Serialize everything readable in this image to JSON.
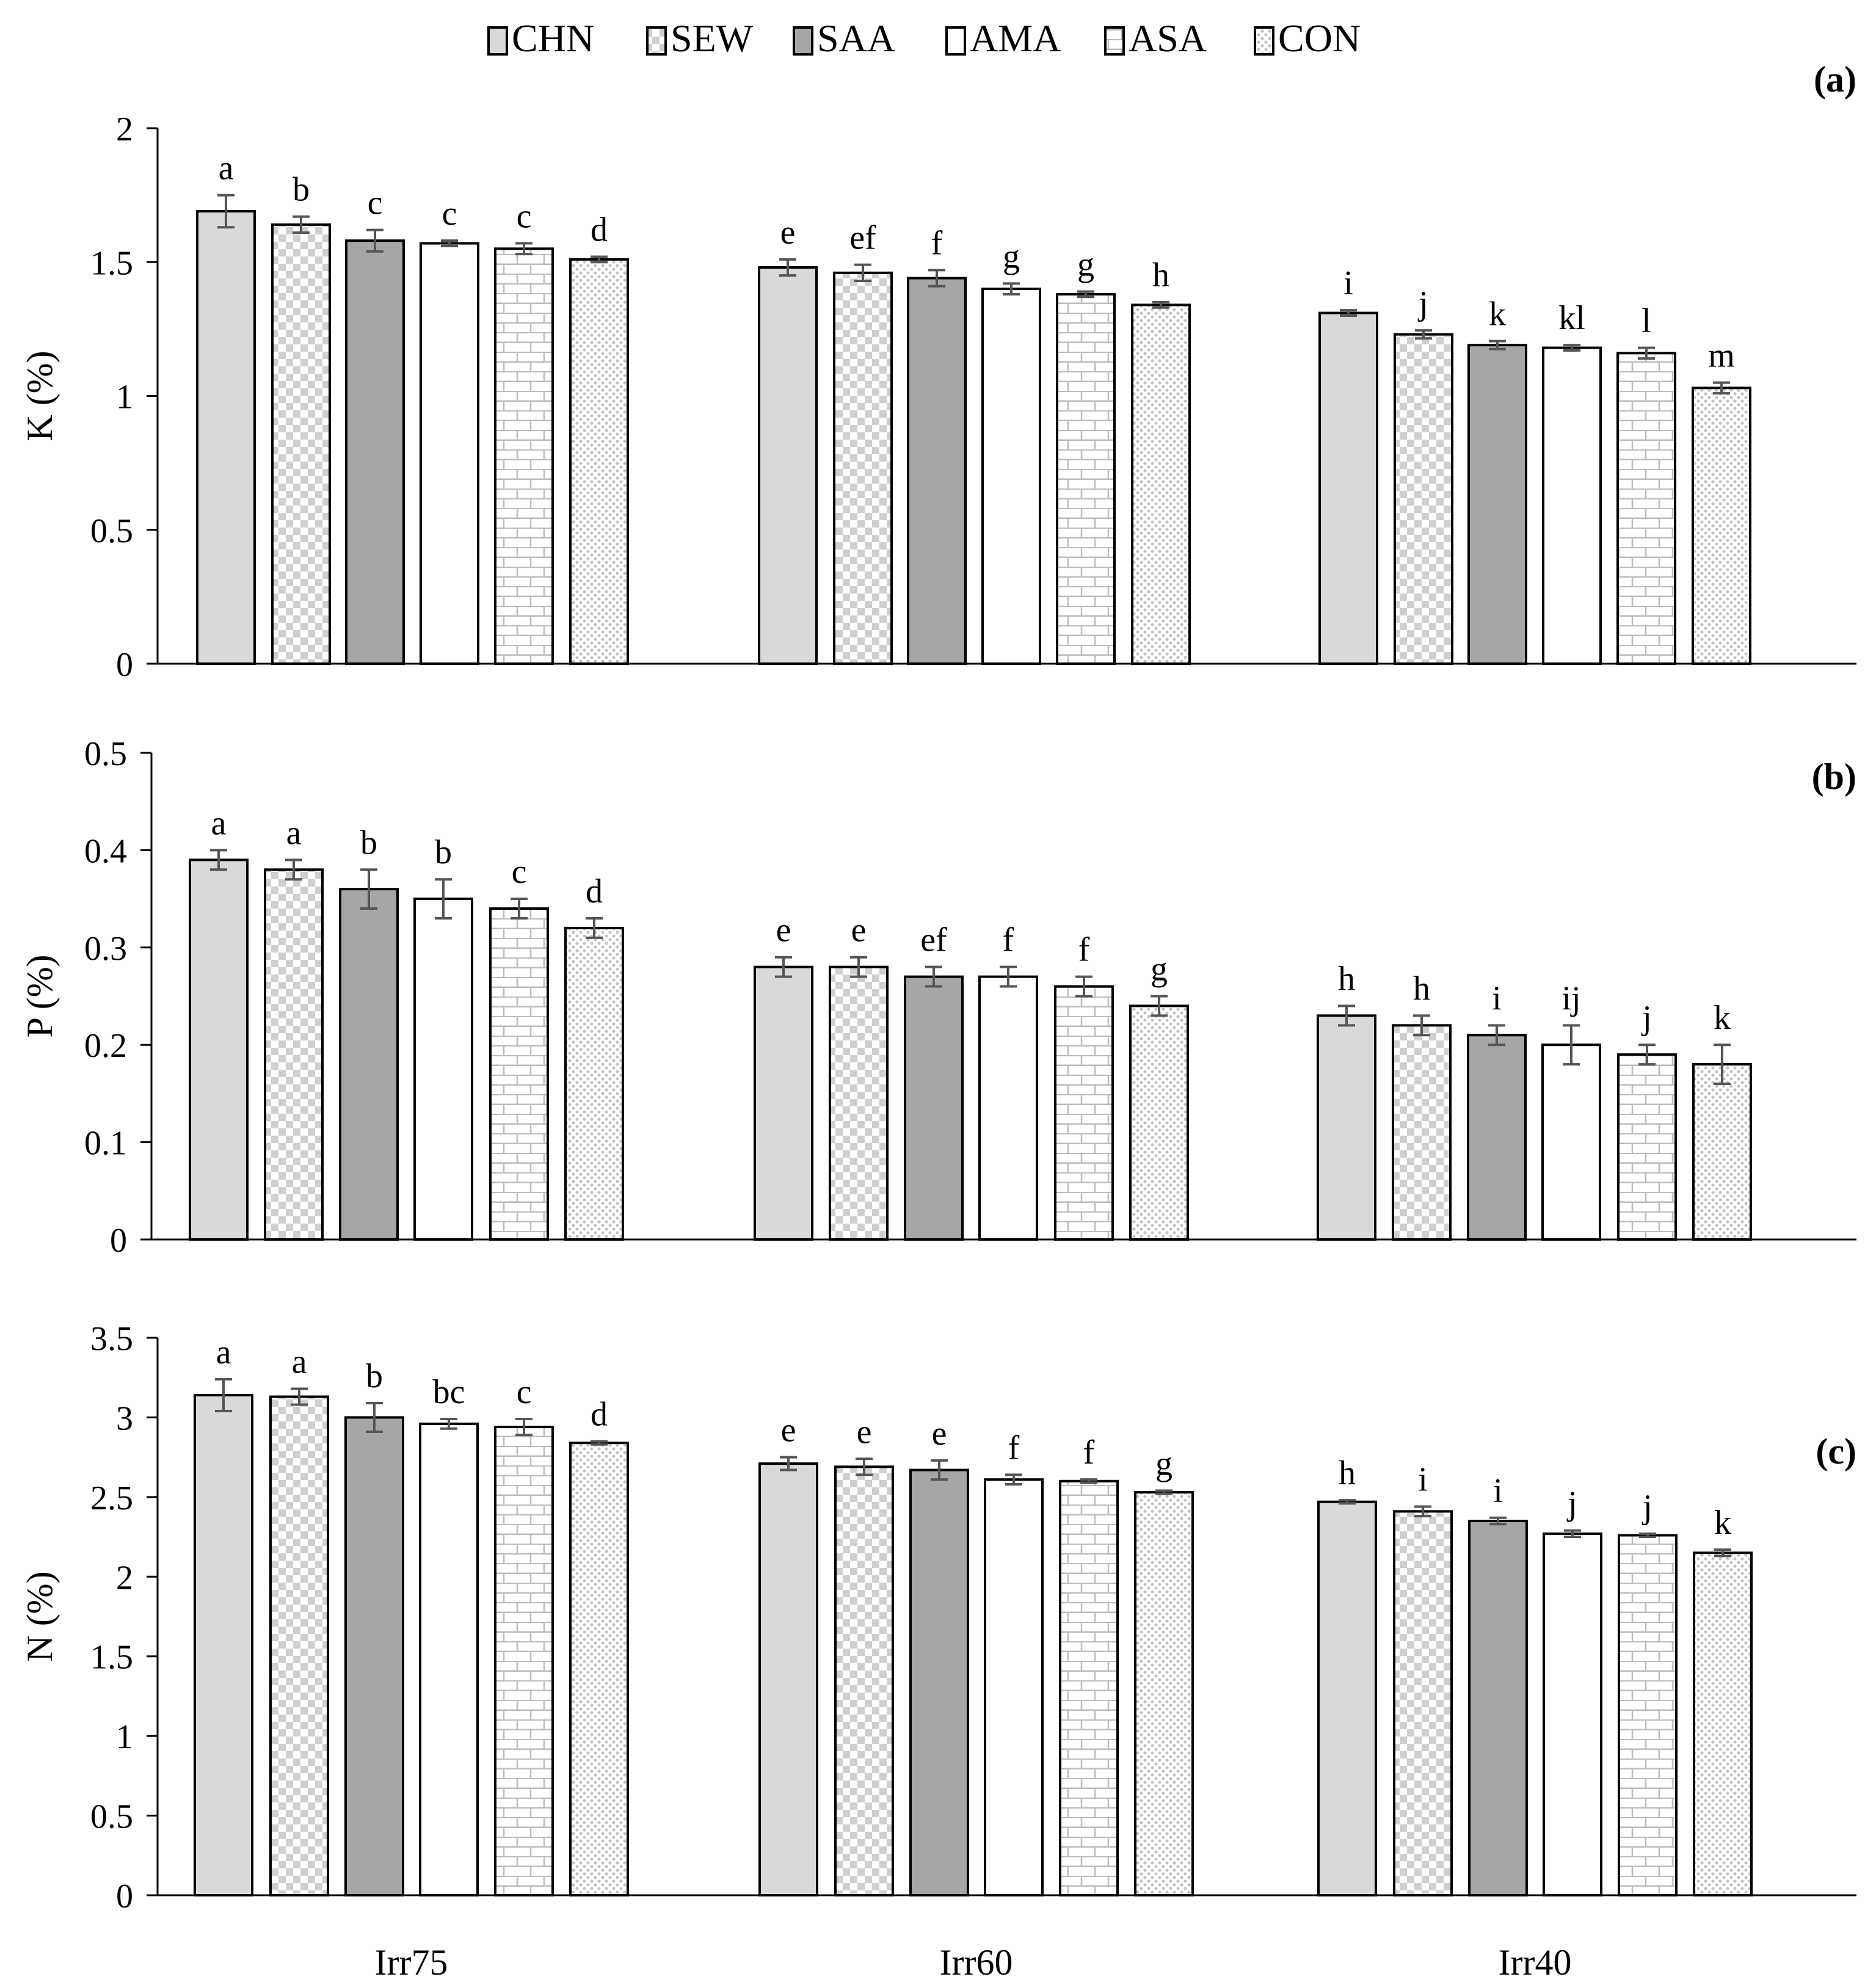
{
  "colors": {
    "CHN": "#d9d9d9",
    "SEW": "#ffffff",
    "SAA": "#a6a6a6",
    "AMA": "#ffffff",
    "ASA": "#ffffff",
    "CON": "#ffffff",
    "outline": "#000000",
    "error_bar": "#555555",
    "pattern": "#c8c8c8"
  },
  "legend": [
    "CHN",
    "SEW",
    "SAA",
    "AMA",
    "ASA",
    "CON"
  ],
  "chart_data": [
    {
      "type": "bar",
      "panel_label": "(a)",
      "ylabel": "K (%)",
      "xlabel": "",
      "categories": [
        "Irr75",
        "Irr60",
        "Irr40"
      ],
      "ylim": [
        0,
        2
      ],
      "yticks": [
        0,
        0.5,
        1,
        1.5,
        2
      ],
      "ytick_labels": [
        "0",
        "0.5",
        "1",
        "1.5",
        "2"
      ],
      "show_category_labels": false,
      "series": [
        {
          "name": "CHN",
          "values": [
            1.69,
            1.48,
            1.31
          ],
          "errors": [
            0.06,
            0.03,
            0.01
          ],
          "letters": [
            "a",
            "e",
            "i"
          ]
        },
        {
          "name": "SEW",
          "values": [
            1.64,
            1.46,
            1.23
          ],
          "errors": [
            0.03,
            0.03,
            0.015
          ],
          "letters": [
            "b",
            "ef",
            "j"
          ]
        },
        {
          "name": "SAA",
          "values": [
            1.58,
            1.44,
            1.19
          ],
          "errors": [
            0.04,
            0.03,
            0.015
          ],
          "letters": [
            "c",
            "f",
            "k"
          ]
        },
        {
          "name": "AMA",
          "values": [
            1.57,
            1.4,
            1.18
          ],
          "errors": [
            0.01,
            0.02,
            0.01
          ],
          "letters": [
            "c",
            "g",
            "kl"
          ]
        },
        {
          "name": "ASA",
          "values": [
            1.55,
            1.38,
            1.16
          ],
          "errors": [
            0.02,
            0.01,
            0.02
          ],
          "letters": [
            "c",
            "g",
            "l"
          ]
        },
        {
          "name": "CON",
          "values": [
            1.51,
            1.34,
            1.03
          ],
          "errors": [
            0.01,
            0.01,
            0.02
          ],
          "letters": [
            "d",
            "h",
            "m"
          ]
        }
      ]
    },
    {
      "type": "bar",
      "panel_label": "(b)",
      "ylabel": "P (%)",
      "xlabel": "",
      "categories": [
        "Irr75",
        "Irr60",
        "Irr40"
      ],
      "ylim": [
        0,
        0.5
      ],
      "yticks": [
        0,
        0.1,
        0.2,
        0.3,
        0.4,
        0.5
      ],
      "ytick_labels": [
        "0",
        "0.1",
        "0.2",
        "0.3",
        "0.4",
        "0.5"
      ],
      "show_category_labels": false,
      "series": [
        {
          "name": "CHN",
          "values": [
            0.39,
            0.28,
            0.23
          ],
          "errors": [
            0.01,
            0.01,
            0.01
          ],
          "letters": [
            "a",
            "e",
            "h"
          ]
        },
        {
          "name": "SEW",
          "values": [
            0.38,
            0.28,
            0.22
          ],
          "errors": [
            0.01,
            0.01,
            0.01
          ],
          "letters": [
            "a",
            "e",
            "h"
          ]
        },
        {
          "name": "SAA",
          "values": [
            0.36,
            0.27,
            0.21
          ],
          "errors": [
            0.02,
            0.01,
            0.01
          ],
          "letters": [
            "b",
            "ef",
            "i"
          ]
        },
        {
          "name": "AMA",
          "values": [
            0.35,
            0.27,
            0.2
          ],
          "errors": [
            0.02,
            0.01,
            0.02
          ],
          "letters": [
            "b",
            "f",
            "ij"
          ]
        },
        {
          "name": "ASA",
          "values": [
            0.34,
            0.26,
            0.19
          ],
          "errors": [
            0.01,
            0.01,
            0.01
          ],
          "letters": [
            "c",
            "f",
            "j"
          ]
        },
        {
          "name": "CON",
          "values": [
            0.32,
            0.24,
            0.18
          ],
          "errors": [
            0.01,
            0.01,
            0.02
          ],
          "letters": [
            "d",
            "g",
            "k"
          ]
        }
      ]
    },
    {
      "type": "bar",
      "panel_label": "(c)",
      "ylabel": "N (%)",
      "xlabel": "",
      "categories": [
        "Irr75",
        "Irr60",
        "Irr40"
      ],
      "ylim": [
        0,
        3.5
      ],
      "yticks": [
        0,
        0.5,
        1,
        1.5,
        2,
        2.5,
        3,
        3.5
      ],
      "ytick_labels": [
        "0",
        "0.5",
        "1",
        "1.5",
        "2",
        "2.5",
        "3",
        "3.5"
      ],
      "show_category_labels": true,
      "series": [
        {
          "name": "CHN",
          "values": [
            3.14,
            2.71,
            2.47
          ],
          "errors": [
            0.1,
            0.04,
            0.01
          ],
          "letters": [
            "a",
            "e",
            "h"
          ]
        },
        {
          "name": "SEW",
          "values": [
            3.13,
            2.69,
            2.41
          ],
          "errors": [
            0.05,
            0.05,
            0.03
          ],
          "letters": [
            "a",
            "e",
            "i"
          ]
        },
        {
          "name": "SAA",
          "values": [
            3.0,
            2.67,
            2.35
          ],
          "errors": [
            0.09,
            0.06,
            0.02
          ],
          "letters": [
            "b",
            "e",
            "i"
          ]
        },
        {
          "name": "AMA",
          "values": [
            2.96,
            2.61,
            2.27
          ],
          "errors": [
            0.03,
            0.03,
            0.02
          ],
          "letters": [
            "bc",
            "f",
            "j"
          ]
        },
        {
          "name": "ASA",
          "values": [
            2.94,
            2.6,
            2.26
          ],
          "errors": [
            0.05,
            0.01,
            0.01
          ],
          "letters": [
            "c",
            "f",
            "j"
          ]
        },
        {
          "name": "CON",
          "values": [
            2.84,
            2.53,
            2.15
          ],
          "errors": [
            0.01,
            0.01,
            0.02
          ],
          "letters": [
            "d",
            "g",
            "k"
          ]
        }
      ]
    }
  ]
}
